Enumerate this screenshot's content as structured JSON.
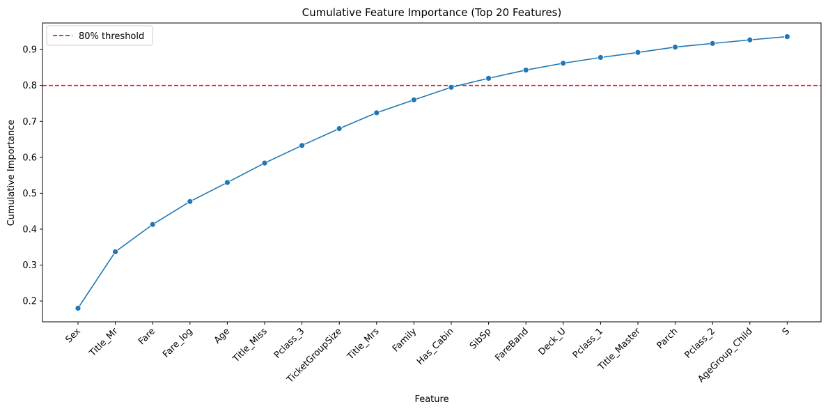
{
  "chart_data": {
    "type": "line",
    "title": "Cumulative Feature Importance (Top 20 Features)",
    "xlabel": "Feature",
    "ylabel": "Cumulative Importance",
    "categories": [
      "Sex",
      "Title_Mr",
      "Fare",
      "Fare_log",
      "Age",
      "Title_Miss",
      "Pclass_3",
      "TicketGroupSize",
      "Title_Mrs",
      "Family",
      "Has_Cabin",
      "SibSp",
      "FareBand",
      "Deck_U",
      "Pclass_1",
      "Title_Master",
      "Parch",
      "Pclass_2",
      "AgeGroup_Child",
      "S"
    ],
    "series": [
      {
        "values": [
          0.18,
          0.337,
          0.413,
          0.477,
          0.53,
          0.584,
          0.633,
          0.68,
          0.724,
          0.76,
          0.795,
          0.82,
          0.843,
          0.862,
          0.878,
          0.892,
          0.907,
          0.917,
          0.927,
          0.936
        ],
        "color": "#1f77b4"
      }
    ],
    "threshold": {
      "value": 0.8,
      "label": "80% threshold",
      "color": "#e41a1c",
      "style": "dashed"
    },
    "yticks": [
      0.2,
      0.3,
      0.4,
      0.5,
      0.6,
      0.7,
      0.8,
      0.9
    ],
    "ytick_labels": [
      "0.2",
      "0.3",
      "0.4",
      "0.5",
      "0.6",
      "0.7",
      "0.8",
      "0.9"
    ],
    "ylim": [
      0.142,
      0.974
    ],
    "grid": false,
    "legend_position": "top-left"
  }
}
